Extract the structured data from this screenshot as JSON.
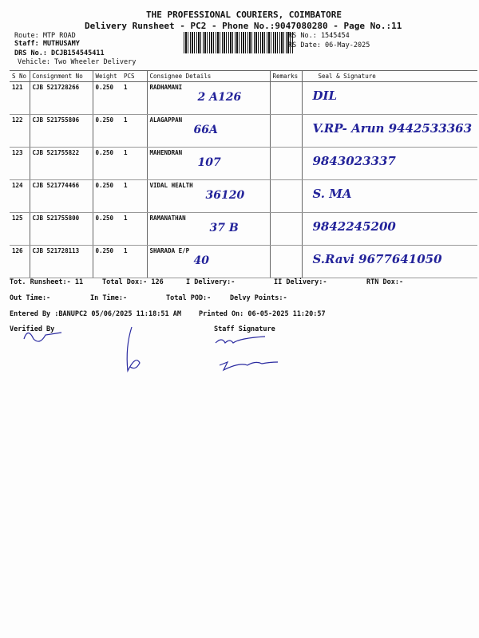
{
  "header": {
    "company": "THE PROFESSIONAL COURIERS, COIMBATORE",
    "subtitle": "Delivery Runsheet - PC2 - Phone No.:9047080280 - Page No.:11",
    "route": "Route: MTP ROAD",
    "staff": "Staff: MUTHUSAMY",
    "drs": "DRS No.: DCJB154545411",
    "vehicle": "Vehicle: Two Wheeler Delivery",
    "rs_no": "RS No.: 1545454",
    "rs_date": "RS Date: 06-May-2025"
  },
  "table": {
    "columns": [
      "S No",
      "Consignment No",
      "Weight",
      "PCS",
      "Consignee Details",
      "Remarks",
      "Seal & Signature"
    ],
    "rows": [
      {
        "sno": "121",
        "cn": "CJB 521728266",
        "weight": "0.250",
        "pcs": "1",
        "consignee": "RADHAMANI",
        "note": "2  A126",
        "sign": "DIL"
      },
      {
        "sno": "122",
        "cn": "CJB 521755806",
        "weight": "0.250",
        "pcs": "1",
        "consignee": "ALAGAPPAN",
        "note": "66A",
        "sign": "V.RP- Arun  9442533363"
      },
      {
        "sno": "123",
        "cn": "CJB 521755822",
        "weight": "0.250",
        "pcs": "1",
        "consignee": "MAHENDRAN",
        "note": "107",
        "sign": "9843023337"
      },
      {
        "sno": "124",
        "cn": "CJB 521774466",
        "weight": "0.250",
        "pcs": "1",
        "consignee": "VIDAL HEALTH",
        "note": "36120",
        "sign": "S. MA"
      },
      {
        "sno": "125",
        "cn": "CJB 521755800",
        "weight": "0.250",
        "pcs": "1",
        "consignee": "RAMANATHAN",
        "note": "37 B",
        "sign": "9842245200"
      },
      {
        "sno": "126",
        "cn": "CJB 521728113",
        "weight": "0.250",
        "pcs": "1",
        "consignee": "SHARADA E/P",
        "note": "40",
        "sign": "S.Ravi 9677641050"
      }
    ]
  },
  "footer": {
    "tot_runsheet": "Tot. Runsheet:- 11",
    "total_dox": "Total Dox:-  126",
    "i_delivery": "I Delivery:-",
    "ii_delivery": "II Delivery:-",
    "rtn_dox": "RTN Dox:-",
    "out_time": "Out Time:-",
    "in_time": "In Time:-",
    "total_pod": "Total POD:-",
    "delvy_points": "Delvy Points:-",
    "entered_by": "Entered By :BANUPC2 05/06/2025 11:18:51 AM",
    "printed_on": "Printed On: 06-05-2025 11:20:57",
    "verified_by": "Verified By",
    "staff_signature": "Staff Signature"
  }
}
